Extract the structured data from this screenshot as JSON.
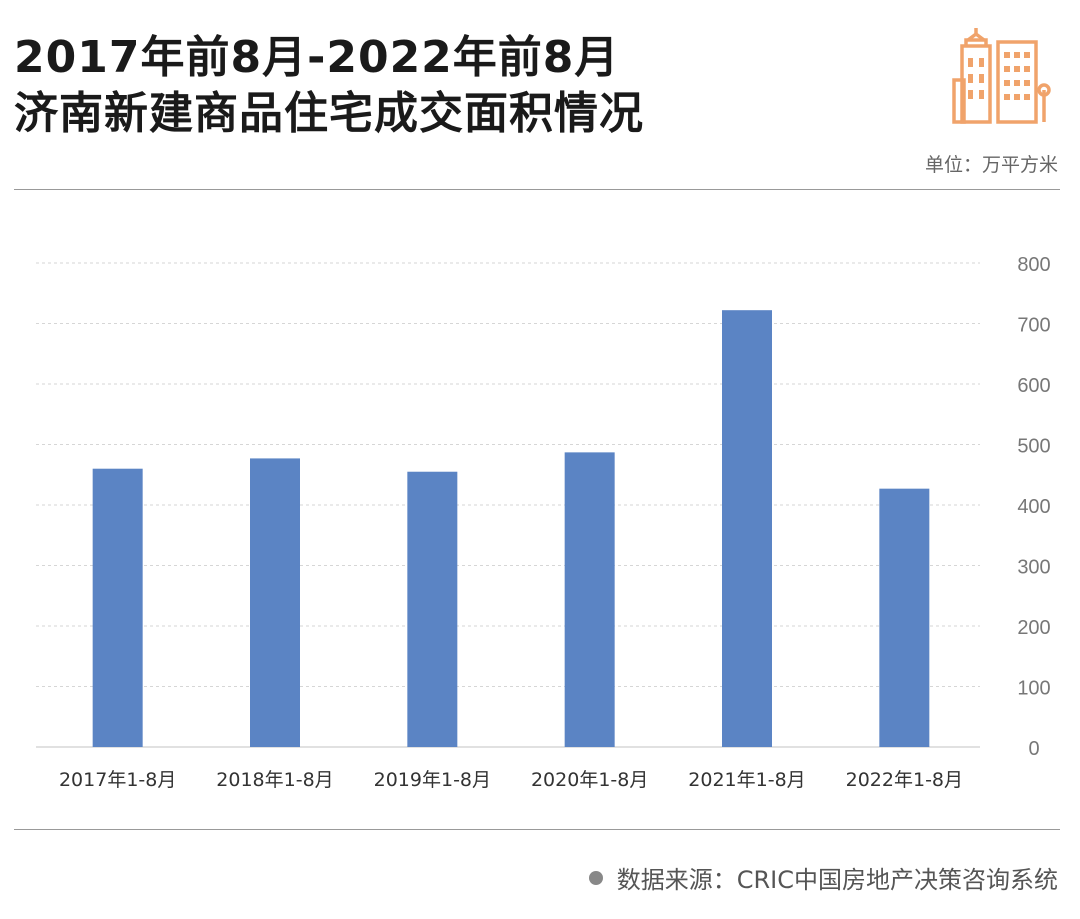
{
  "header": {
    "title_line1": "2017年前8月-2022年前8月",
    "title_line2": "济南新建商品住宅成交面积情况",
    "unit": "单位：万平方米"
  },
  "footer": {
    "source": "数据来源：CRIC中国房地产决策咨询系统"
  },
  "icons": {
    "logo": "building-icon"
  },
  "colors": {
    "bar": "#5b84c4",
    "icon": "#f0a36b",
    "grid": "#d6d6d6"
  },
  "chart_data": {
    "type": "bar",
    "categories": [
      "2017年1-8月",
      "2018年1-8月",
      "2019年1-8月",
      "2020年1-8月",
      "2021年1-8月",
      "2022年1-8月"
    ],
    "values": [
      460,
      477,
      455,
      487,
      722,
      427
    ],
    "ylim": [
      0,
      800
    ],
    "yticks": [
      0,
      100,
      200,
      300,
      400,
      500,
      600,
      700,
      800
    ],
    "grid": true,
    "legend": "none"
  }
}
